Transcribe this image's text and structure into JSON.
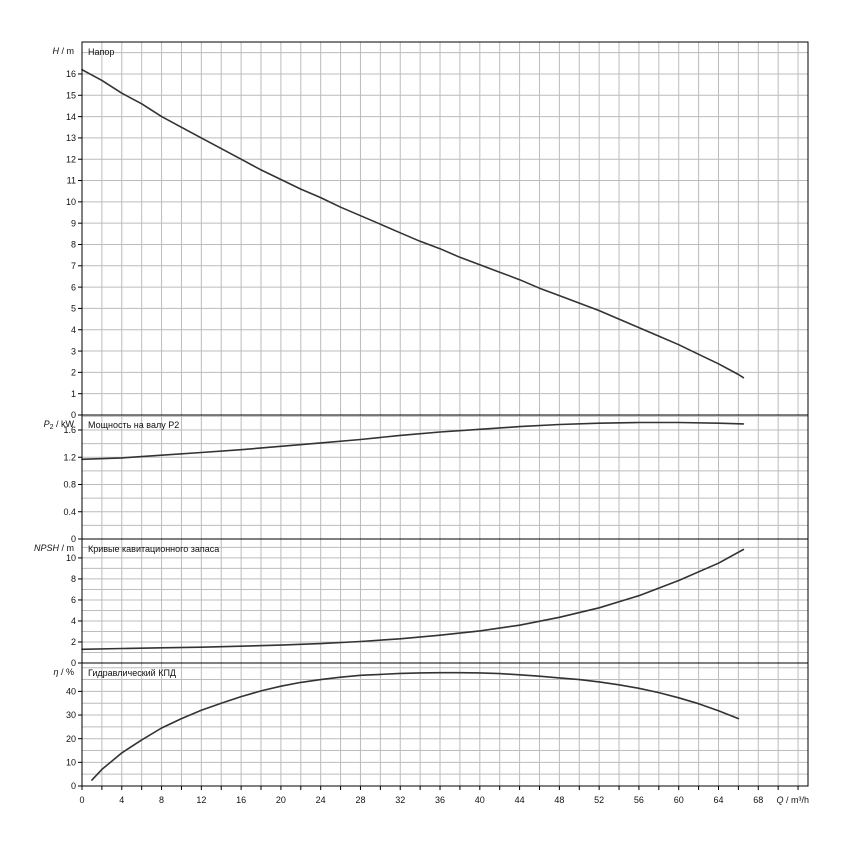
{
  "chart_data": [
    {
      "type": "line",
      "title": "Напор",
      "ylabel": {
        "symbol": "H",
        "unit": " / m"
      },
      "ylim": [
        0,
        17.5
      ],
      "yticks": [
        0,
        1,
        2,
        3,
        4,
        5,
        6,
        7,
        8,
        9,
        10,
        11,
        12,
        13,
        14,
        15,
        16
      ],
      "series": [
        {
          "x": [
            0,
            2,
            4,
            6,
            8,
            10,
            12,
            14,
            16,
            18,
            20,
            22,
            24,
            26,
            28,
            30,
            32,
            34,
            36,
            38,
            40,
            42,
            44,
            46,
            48,
            50,
            52,
            54,
            56,
            58,
            60,
            62,
            64,
            66,
            66.5
          ],
          "y": [
            16.2,
            15.7,
            15.1,
            14.6,
            14.0,
            13.5,
            13.0,
            12.5,
            12.0,
            11.5,
            11.05,
            10.6,
            10.2,
            9.75,
            9.35,
            8.95,
            8.55,
            8.15,
            7.8,
            7.4,
            7.05,
            6.7,
            6.35,
            5.95,
            5.6,
            5.25,
            4.9,
            4.5,
            4.1,
            3.7,
            3.3,
            2.85,
            2.4,
            1.9,
            1.75
          ]
        }
      ]
    },
    {
      "type": "line",
      "title": "Мощность на валу P2",
      "ylabel": {
        "symbol": "P",
        "sub": "2",
        "unit": " / kW"
      },
      "ylim": [
        0,
        1.82
      ],
      "yticks": [
        0,
        0.4,
        0.8,
        1.2,
        1.6
      ],
      "ytick_labels": [
        "0",
        "0.4",
        "0.8",
        "1.2",
        "1.6"
      ],
      "series": [
        {
          "x": [
            0,
            4,
            8,
            12,
            16,
            20,
            24,
            28,
            32,
            36,
            40,
            44,
            48,
            52,
            56,
            60,
            64,
            66.5
          ],
          "y": [
            1.17,
            1.19,
            1.23,
            1.27,
            1.31,
            1.36,
            1.41,
            1.46,
            1.52,
            1.57,
            1.61,
            1.65,
            1.68,
            1.7,
            1.71,
            1.71,
            1.7,
            1.69
          ]
        }
      ]
    },
    {
      "type": "line",
      "title": "Кривые кавитационного запаса",
      "ylabel": {
        "symbol": "NPSH",
        "unit": " / m"
      },
      "ylim": [
        0,
        11.8
      ],
      "yticks": [
        0,
        2,
        4,
        6,
        8,
        10
      ],
      "series": [
        {
          "x": [
            0,
            4,
            8,
            12,
            16,
            20,
            24,
            28,
            32,
            36,
            40,
            44,
            48,
            52,
            56,
            60,
            64,
            66.5
          ],
          "y": [
            1.3,
            1.38,
            1.45,
            1.5,
            1.6,
            1.7,
            1.85,
            2.05,
            2.3,
            2.65,
            3.05,
            3.6,
            4.35,
            5.25,
            6.4,
            7.85,
            9.5,
            10.8
          ]
        }
      ]
    },
    {
      "type": "line",
      "title": "Гидравлический КПД",
      "ylabel": {
        "symbol": "η",
        "unit": " / %"
      },
      "ylim": [
        0,
        52
      ],
      "yticks": [
        0,
        10,
        20,
        30,
        40
      ],
      "series": [
        {
          "x": [
            1,
            2,
            4,
            6,
            8,
            10,
            12,
            14,
            16,
            18,
            20,
            22,
            24,
            26,
            28,
            30,
            32,
            34,
            36,
            38,
            40,
            42,
            44,
            46,
            48,
            50,
            52,
            54,
            56,
            58,
            60,
            62,
            64,
            66
          ],
          "y": [
            2.5,
            7,
            14,
            19.5,
            24.5,
            28.5,
            32,
            35,
            37.8,
            40.2,
            42.2,
            43.8,
            45,
            46,
            46.8,
            47.2,
            47.6,
            47.8,
            47.9,
            47.9,
            47.8,
            47.5,
            47,
            46.4,
            45.7,
            45,
            44,
            42.8,
            41.3,
            39.5,
            37.3,
            34.8,
            31.8,
            28.5
          ]
        }
      ]
    }
  ],
  "x_axis": {
    "label": "Q / m³/h",
    "xlim": [
      0,
      73
    ],
    "ticks": [
      0,
      4,
      8,
      12,
      16,
      20,
      24,
      28,
      32,
      36,
      40,
      44,
      48,
      52,
      56,
      60,
      64,
      68
    ]
  },
  "grid": true,
  "colors": {
    "line": "#333333",
    "grid": "#bcbcbc",
    "frame": "#000000"
  }
}
